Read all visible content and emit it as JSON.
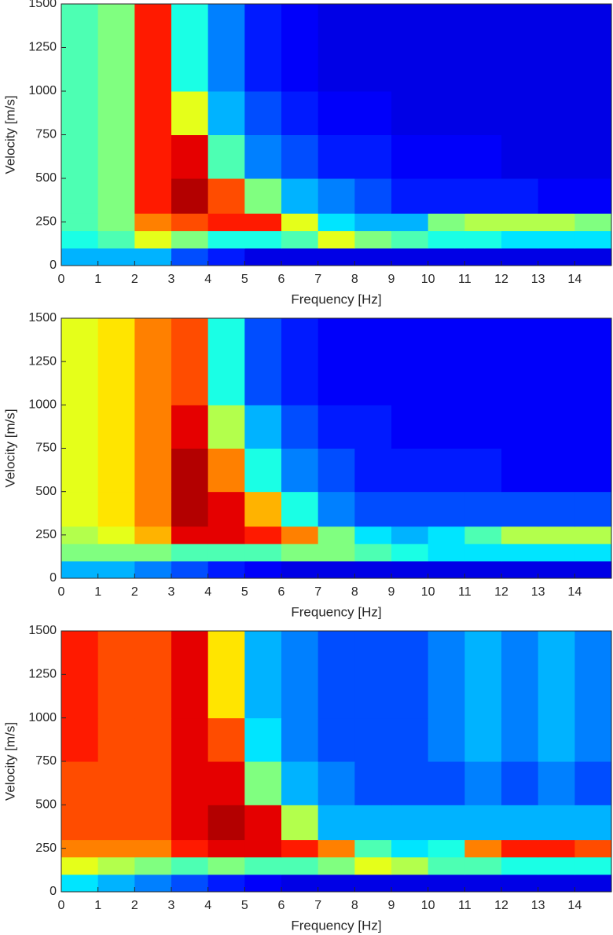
{
  "chart_data": [
    {
      "type": "heatmap",
      "colormap": "jet",
      "xlabel": "Frequency [Hz]",
      "ylabel": "Velocity [m/s]",
      "xlim": [
        0,
        15
      ],
      "ylim": [
        0,
        1500
      ],
      "xticks": [
        0,
        1,
        2,
        3,
        4,
        5,
        6,
        7,
        8,
        9,
        10,
        11,
        12,
        13,
        14
      ],
      "yticks": [
        0,
        250,
        500,
        750,
        1000,
        1250,
        1500
      ],
      "x_bins": [
        0,
        1,
        2,
        3,
        4,
        5,
        6,
        7,
        8,
        9,
        10,
        11,
        12,
        13,
        14,
        15
      ],
      "y_bins": [
        0,
        100,
        200,
        300,
        500,
        750,
        1000,
        1500
      ],
      "z": [
        [
          0.3,
          0.3,
          0.3,
          0.2,
          0.15,
          0.1,
          0.1,
          0.1,
          0.1,
          0.1,
          0.1,
          0.1,
          0.1,
          0.1,
          0.1
        ],
        [
          0.4,
          0.45,
          0.6,
          0.5,
          0.4,
          0.4,
          0.45,
          0.6,
          0.5,
          0.45,
          0.4,
          0.4,
          0.35,
          0.35,
          0.35
        ],
        [
          0.45,
          0.5,
          0.75,
          0.8,
          0.85,
          0.85,
          0.6,
          0.35,
          0.3,
          0.3,
          0.5,
          0.55,
          0.55,
          0.55,
          0.5
        ],
        [
          0.45,
          0.5,
          0.85,
          0.95,
          0.8,
          0.5,
          0.3,
          0.25,
          0.2,
          0.15,
          0.15,
          0.15,
          0.15,
          0.12,
          0.12
        ],
        [
          0.45,
          0.5,
          0.85,
          0.9,
          0.45,
          0.25,
          0.2,
          0.15,
          0.15,
          0.12,
          0.12,
          0.12,
          0.1,
          0.1,
          0.1
        ],
        [
          0.45,
          0.5,
          0.85,
          0.6,
          0.3,
          0.2,
          0.15,
          0.12,
          0.12,
          0.1,
          0.1,
          0.1,
          0.1,
          0.1,
          0.1
        ],
        [
          0.45,
          0.5,
          0.85,
          0.4,
          0.25,
          0.15,
          0.12,
          0.1,
          0.1,
          0.1,
          0.1,
          0.1,
          0.1,
          0.1,
          0.1
        ]
      ]
    },
    {
      "type": "heatmap",
      "colormap": "jet",
      "xlabel": "Frequency [Hz]",
      "ylabel": "Velocity [m/s]",
      "xlim": [
        0,
        15
      ],
      "ylim": [
        0,
        1500
      ],
      "xticks": [
        0,
        1,
        2,
        3,
        4,
        5,
        6,
        7,
        8,
        9,
        10,
        11,
        12,
        13,
        14
      ],
      "yticks": [
        0,
        250,
        500,
        750,
        1000,
        1250,
        1500
      ],
      "x_bins": [
        0,
        1,
        2,
        3,
        4,
        5,
        6,
        7,
        8,
        9,
        10,
        11,
        12,
        13,
        14,
        15
      ],
      "y_bins": [
        0,
        100,
        200,
        300,
        500,
        750,
        1000,
        1500
      ],
      "z": [
        [
          0.3,
          0.3,
          0.25,
          0.2,
          0.15,
          0.12,
          0.1,
          0.1,
          0.1,
          0.1,
          0.1,
          0.1,
          0.1,
          0.1,
          0.1
        ],
        [
          0.5,
          0.5,
          0.5,
          0.45,
          0.45,
          0.45,
          0.5,
          0.5,
          0.45,
          0.4,
          0.35,
          0.35,
          0.35,
          0.35,
          0.35
        ],
        [
          0.55,
          0.6,
          0.7,
          0.9,
          0.9,
          0.85,
          0.75,
          0.5,
          0.35,
          0.3,
          0.35,
          0.45,
          0.55,
          0.55,
          0.55
        ],
        [
          0.6,
          0.65,
          0.75,
          0.95,
          0.9,
          0.7,
          0.4,
          0.25,
          0.2,
          0.2,
          0.2,
          0.2,
          0.2,
          0.2,
          0.2
        ],
        [
          0.6,
          0.65,
          0.75,
          0.95,
          0.75,
          0.4,
          0.25,
          0.2,
          0.15,
          0.15,
          0.15,
          0.15,
          0.12,
          0.12,
          0.12
        ],
        [
          0.6,
          0.65,
          0.75,
          0.9,
          0.55,
          0.3,
          0.2,
          0.15,
          0.15,
          0.12,
          0.12,
          0.12,
          0.12,
          0.12,
          0.12
        ],
        [
          0.6,
          0.65,
          0.75,
          0.8,
          0.4,
          0.2,
          0.15,
          0.12,
          0.12,
          0.12,
          0.12,
          0.12,
          0.12,
          0.12,
          0.12
        ]
      ]
    },
    {
      "type": "heatmap",
      "colormap": "jet",
      "xlabel": "Frequency [Hz]",
      "ylabel": "Velocity [m/s]",
      "xlim": [
        0,
        15
      ],
      "ylim": [
        0,
        1500
      ],
      "xticks": [
        0,
        1,
        2,
        3,
        4,
        5,
        6,
        7,
        8,
        9,
        10,
        11,
        12,
        13,
        14
      ],
      "yticks": [
        0,
        250,
        500,
        750,
        1000,
        1250,
        1500
      ],
      "x_bins": [
        0,
        1,
        2,
        3,
        4,
        5,
        6,
        7,
        8,
        9,
        10,
        11,
        12,
        13,
        14,
        15
      ],
      "y_bins": [
        0,
        100,
        200,
        300,
        500,
        750,
        1000,
        1500
      ],
      "z": [
        [
          0.35,
          0.3,
          0.25,
          0.2,
          0.15,
          0.12,
          0.1,
          0.1,
          0.1,
          0.1,
          0.1,
          0.1,
          0.1,
          0.1,
          0.1
        ],
        [
          0.6,
          0.55,
          0.5,
          0.45,
          0.5,
          0.45,
          0.45,
          0.5,
          0.6,
          0.55,
          0.45,
          0.45,
          0.4,
          0.4,
          0.4
        ],
        [
          0.75,
          0.75,
          0.75,
          0.85,
          0.9,
          0.9,
          0.85,
          0.75,
          0.45,
          0.35,
          0.4,
          0.75,
          0.85,
          0.85,
          0.8
        ],
        [
          0.8,
          0.8,
          0.8,
          0.9,
          0.95,
          0.9,
          0.55,
          0.3,
          0.3,
          0.3,
          0.3,
          0.3,
          0.3,
          0.3,
          0.3
        ],
        [
          0.8,
          0.8,
          0.8,
          0.9,
          0.9,
          0.5,
          0.3,
          0.25,
          0.2,
          0.2,
          0.2,
          0.25,
          0.2,
          0.25,
          0.2
        ],
        [
          0.85,
          0.8,
          0.8,
          0.9,
          0.8,
          0.35,
          0.25,
          0.2,
          0.2,
          0.2,
          0.25,
          0.3,
          0.25,
          0.3,
          0.25
        ],
        [
          0.85,
          0.8,
          0.8,
          0.9,
          0.65,
          0.3,
          0.25,
          0.2,
          0.2,
          0.2,
          0.25,
          0.3,
          0.25,
          0.3,
          0.25
        ]
      ]
    }
  ]
}
